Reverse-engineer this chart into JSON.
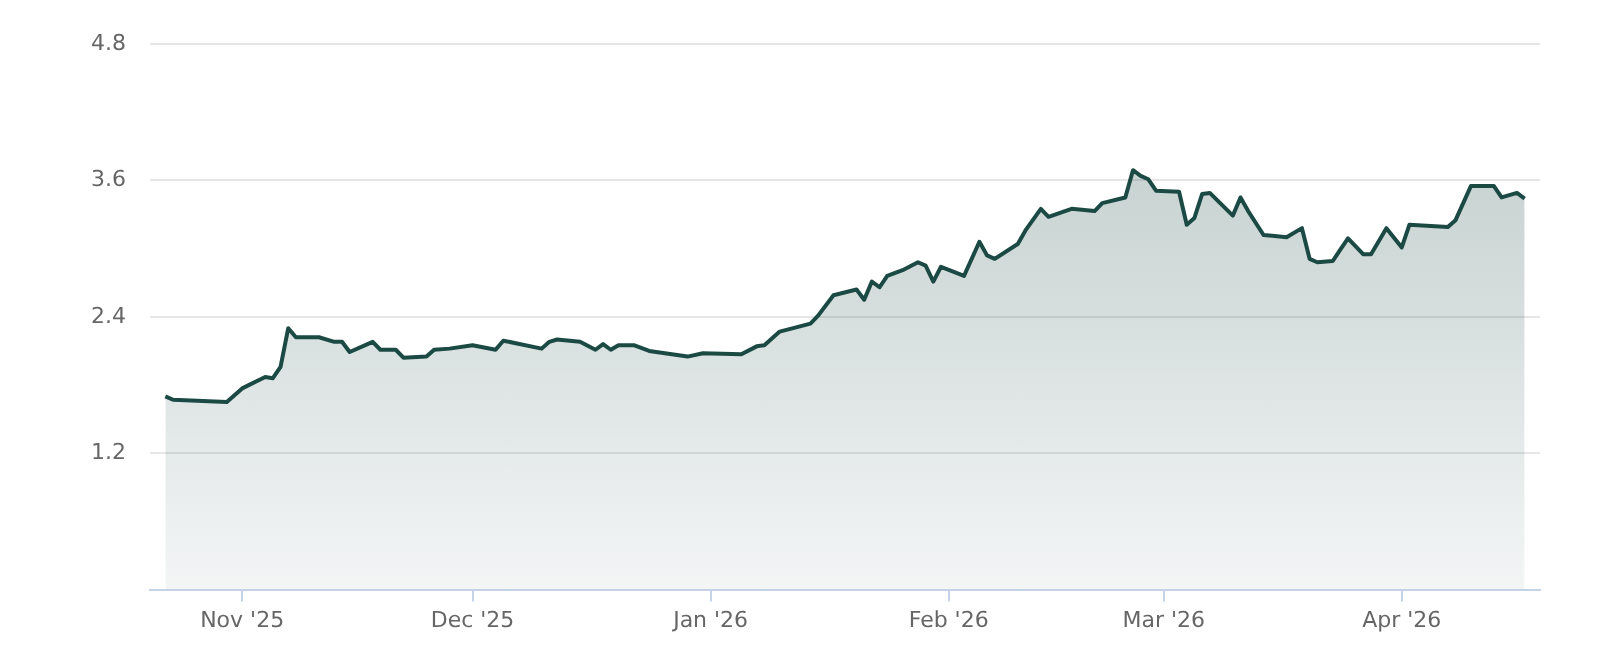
{
  "chart_data": {
    "type": "area",
    "x": [
      "2025-10-22",
      "2025-10-23",
      "2025-10-30",
      "2025-11-01",
      "2025-11-04",
      "2025-11-05",
      "2025-11-06",
      "2025-11-07",
      "2025-11-08",
      "2025-11-11",
      "2025-11-13",
      "2025-11-14",
      "2025-11-15",
      "2025-11-18",
      "2025-11-19",
      "2025-11-21",
      "2025-11-22",
      "2025-11-25",
      "2025-11-26",
      "2025-11-28",
      "2025-12-01",
      "2025-12-04",
      "2025-12-05",
      "2025-12-10",
      "2025-12-11",
      "2025-12-12",
      "2025-12-15",
      "2025-12-17",
      "2025-12-18",
      "2025-12-19",
      "2025-12-20",
      "2025-12-22",
      "2025-12-24",
      "2025-12-29",
      "2025-12-31",
      "2026-01-05",
      "2026-01-07",
      "2026-01-08",
      "2026-01-10",
      "2026-01-14",
      "2026-01-15",
      "2026-01-17",
      "2026-01-20",
      "2026-01-21",
      "2026-01-22",
      "2026-01-23",
      "2026-01-24",
      "2026-01-26",
      "2026-01-28",
      "2026-01-29",
      "2026-01-30",
      "2026-01-31",
      "2026-02-03",
      "2026-02-05",
      "2026-02-06",
      "2026-02-07",
      "2026-02-10",
      "2026-02-11",
      "2026-02-13",
      "2026-02-14",
      "2026-02-17",
      "2026-02-20",
      "2026-02-21",
      "2026-02-24",
      "2026-02-25",
      "2026-02-26",
      "2026-02-27",
      "2026-02-28",
      "2026-03-03",
      "2026-03-04",
      "2026-03-05",
      "2026-03-06",
      "2026-03-07",
      "2026-03-10",
      "2026-03-11",
      "2026-03-12",
      "2026-03-14",
      "2026-03-17",
      "2026-03-19",
      "2026-03-20",
      "2026-03-21",
      "2026-03-23",
      "2026-03-24",
      "2026-03-25",
      "2026-03-27",
      "2026-03-28",
      "2026-03-30",
      "2026-04-01",
      "2026-04-02",
      "2026-04-07",
      "2026-04-08",
      "2026-04-10",
      "2026-04-13",
      "2026-04-14",
      "2026-04-16",
      "2026-04-17"
    ],
    "series": [
      {
        "color": "#1b4a45",
        "values": [
          1.7,
          1.67,
          1.65,
          1.77,
          1.87,
          1.86,
          1.96,
          2.3,
          2.22,
          2.22,
          2.18,
          2.18,
          2.09,
          2.18,
          2.11,
          2.11,
          2.04,
          2.05,
          2.11,
          2.12,
          2.15,
          2.11,
          2.19,
          2.12,
          2.18,
          2.2,
          2.18,
          2.11,
          2.16,
          2.11,
          2.15,
          2.15,
          2.1,
          2.05,
          2.08,
          2.07,
          2.14,
          2.15,
          2.27,
          2.34,
          2.41,
          2.59,
          2.64,
          2.55,
          2.71,
          2.66,
          2.76,
          2.81,
          2.88,
          2.85,
          2.71,
          2.84,
          2.76,
          3.06,
          2.94,
          2.91,
          3.04,
          3.16,
          3.35,
          3.28,
          3.35,
          3.33,
          3.4,
          3.45,
          3.69,
          3.64,
          3.61,
          3.51,
          3.5,
          3.21,
          3.27,
          3.48,
          3.49,
          3.29,
          3.45,
          3.33,
          3.12,
          3.1,
          3.18,
          2.91,
          2.88,
          2.89,
          2.99,
          3.09,
          2.95,
          2.95,
          3.18,
          3.01,
          3.21,
          3.19,
          3.25,
          3.55,
          3.55,
          3.45,
          3.49,
          3.44
        ]
      }
    ],
    "xlim": [
      "2025-10-20",
      "2026-04-19"
    ],
    "xticks": [
      {
        "value": "2025-11-01",
        "label": "Nov '25"
      },
      {
        "value": "2025-12-01",
        "label": "Dec '25"
      },
      {
        "value": "2026-01-01",
        "label": "Jan '26"
      },
      {
        "value": "2026-02-01",
        "label": "Feb '26"
      },
      {
        "value": "2026-03-01",
        "label": "Mar '26"
      },
      {
        "value": "2026-04-01",
        "label": "Apr '26"
      }
    ],
    "ylim": [
      0,
      4.8
    ],
    "yticks": [
      1.2,
      2.4,
      3.6,
      4.8
    ],
    "grid": "y",
    "legend": false,
    "marker": "none",
    "line_style": "solid"
  }
}
